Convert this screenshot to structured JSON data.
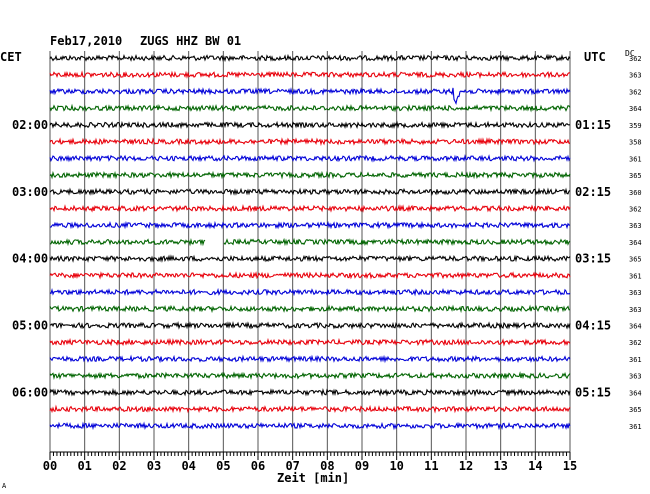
{
  "header": {
    "date": "Feb17,2010",
    "station": "ZUGS HHZ BW 01",
    "left_tz": "CET",
    "right_tz": "UTC",
    "dc_label": "DC"
  },
  "chart_data": {
    "type": "line",
    "title": "Feb17,2010   ZUGS HHZ BW 01",
    "xlabel": "Zeit [min]",
    "xlim": [
      0,
      15
    ],
    "x_ticks": [
      "00",
      "01",
      "02",
      "03",
      "04",
      "05",
      "06",
      "07",
      "08",
      "09",
      "10",
      "11",
      "12",
      "13",
      "14",
      "15"
    ],
    "left_hour_labels": [
      {
        "trace": 4,
        "label": "02:00"
      },
      {
        "trace": 8,
        "label": "03:00"
      },
      {
        "trace": 12,
        "label": "04:00"
      },
      {
        "trace": 16,
        "label": "05:00"
      },
      {
        "trace": 20,
        "label": "06:00"
      }
    ],
    "right_hour_labels": [
      {
        "trace": 4,
        "label": "01:15"
      },
      {
        "trace": 8,
        "label": "02:15"
      },
      {
        "trace": 12,
        "label": "03:15"
      },
      {
        "trace": 16,
        "label": "04:15"
      },
      {
        "trace": 20,
        "label": "05:15"
      }
    ],
    "dc_values": [
      362,
      363,
      362,
      364,
      359,
      358,
      361,
      365,
      360,
      362,
      363,
      364,
      365,
      361,
      363,
      363,
      364,
      362,
      361,
      363,
      364,
      365,
      361
    ],
    "trace_colors": [
      "#000000",
      "#e8000b",
      "#0000d8",
      "#006400"
    ],
    "events": [
      {
        "trace": 2,
        "minute": 11.7,
        "note": "spike"
      }
    ],
    "gaps": [
      {
        "trace": 11,
        "from_min": 4.5,
        "to_min": 5.0
      }
    ]
  },
  "footer_mark": "A"
}
